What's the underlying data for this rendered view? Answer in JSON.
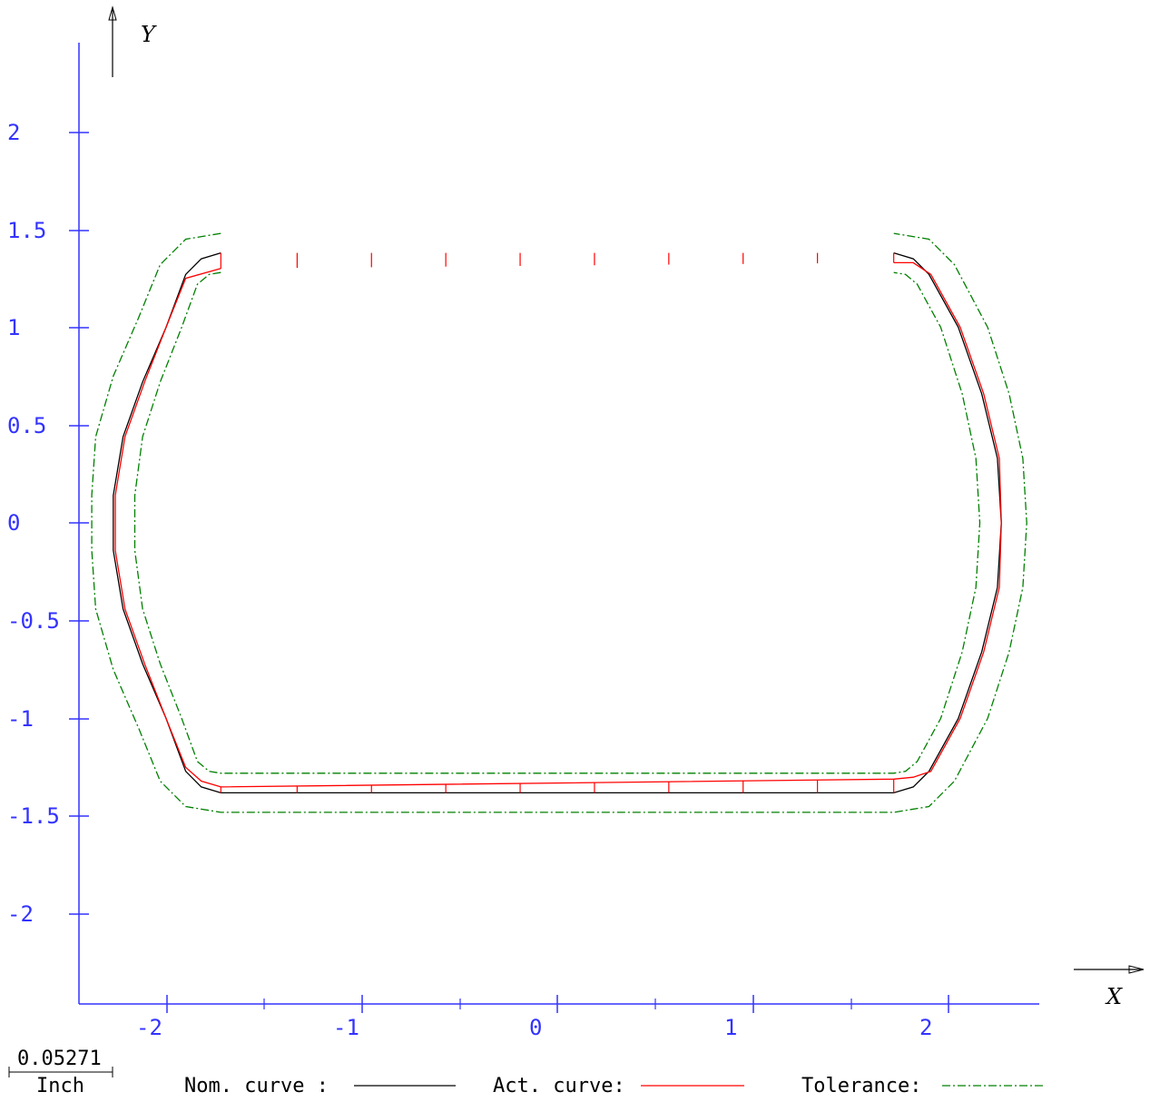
{
  "chart_data": {
    "type": "line",
    "x_axis_label": "X",
    "y_axis_label": "Y",
    "x_ticks": [
      "-2",
      "-1",
      "0",
      "1",
      "2"
    ],
    "y_ticks": [
      "2",
      "1.5",
      "1",
      "0.5",
      "0",
      "-0.5",
      "-1",
      "-1.5",
      "-2"
    ],
    "xlim": [
      -2.45,
      2.45
    ],
    "ylim": [
      -2.45,
      2.45
    ],
    "scale_bar": {
      "value": "0.05271",
      "unit": "Inch"
    },
    "legend": {
      "nominal": "Nom. curve :",
      "actual": "Act. curve:",
      "tolerance": "Tolerance:"
    },
    "colors": {
      "axis": "#3333ff",
      "nominal": "#000000",
      "actual": "#ff0000",
      "tolerance": "#008000"
    },
    "series": [
      {
        "name": "Nom. curve",
        "points": [
          [
            -1.72,
            1.38
          ],
          [
            -1.82,
            1.35
          ],
          [
            -1.9,
            1.27
          ],
          [
            -2.0,
            1.0
          ],
          [
            -2.12,
            0.72
          ],
          [
            -2.22,
            0.44
          ],
          [
            -2.27,
            0.14
          ],
          [
            -2.27,
            -0.14
          ],
          [
            -2.22,
            -0.44
          ],
          [
            -2.12,
            -0.72
          ],
          [
            -2.0,
            -1.0
          ],
          [
            -1.9,
            -1.27
          ],
          [
            -1.82,
            -1.35
          ],
          [
            -1.72,
            -1.38
          ],
          [
            1.72,
            -1.38
          ],
          [
            1.82,
            -1.35
          ],
          [
            1.9,
            -1.27
          ],
          [
            2.05,
            -1.0
          ],
          [
            2.17,
            -0.66
          ],
          [
            2.25,
            -0.33
          ],
          [
            2.27,
            0.0
          ],
          [
            2.25,
            0.33
          ],
          [
            2.17,
            0.66
          ],
          [
            2.05,
            1.0
          ],
          [
            1.9,
            1.27
          ],
          [
            1.82,
            1.35
          ],
          [
            1.72,
            1.38
          ]
        ]
      },
      {
        "name": "Act. curve",
        "points": [
          [
            -1.72,
            1.3
          ],
          [
            -1.9,
            1.25
          ],
          [
            -2.0,
            1.0
          ],
          [
            -2.11,
            0.72
          ],
          [
            -2.21,
            0.44
          ],
          [
            -2.26,
            0.14
          ],
          [
            -2.26,
            -0.14
          ],
          [
            -2.21,
            -0.44
          ],
          [
            -2.11,
            -0.72
          ],
          [
            -2.0,
            -1.0
          ],
          [
            -1.9,
            -1.25
          ],
          [
            -1.82,
            -1.32
          ],
          [
            -1.72,
            -1.35
          ],
          [
            1.72,
            -1.31
          ],
          [
            1.82,
            -1.3
          ],
          [
            1.91,
            -1.27
          ],
          [
            2.06,
            -1.0
          ],
          [
            2.18,
            -0.66
          ],
          [
            2.26,
            -0.33
          ],
          [
            2.27,
            0.0
          ],
          [
            2.26,
            0.33
          ],
          [
            2.18,
            0.66
          ],
          [
            2.06,
            1.0
          ],
          [
            1.91,
            1.27
          ],
          [
            1.82,
            1.33
          ],
          [
            1.72,
            1.33
          ]
        ]
      },
      {
        "name": "Tolerance outer",
        "points": [
          [
            -1.72,
            1.48
          ],
          [
            -1.9,
            1.45
          ],
          [
            -2.03,
            1.32
          ],
          [
            -2.14,
            1.05
          ],
          [
            -2.27,
            0.75
          ],
          [
            -2.36,
            0.44
          ],
          [
            -2.38,
            0.14
          ],
          [
            -2.38,
            -0.14
          ],
          [
            -2.36,
            -0.44
          ],
          [
            -2.27,
            -0.75
          ],
          [
            -2.14,
            -1.05
          ],
          [
            -2.03,
            -1.32
          ],
          [
            -1.9,
            -1.45
          ],
          [
            -1.72,
            -1.48
          ],
          [
            1.72,
            -1.48
          ],
          [
            1.9,
            -1.45
          ],
          [
            2.03,
            -1.32
          ],
          [
            2.2,
            -1.0
          ],
          [
            2.31,
            -0.66
          ],
          [
            2.38,
            -0.33
          ],
          [
            2.4,
            0.0
          ],
          [
            2.38,
            0.33
          ],
          [
            2.31,
            0.66
          ],
          [
            2.2,
            1.0
          ],
          [
            2.03,
            1.32
          ],
          [
            1.9,
            1.45
          ],
          [
            1.72,
            1.48
          ]
        ]
      },
      {
        "name": "Tolerance inner",
        "points": [
          [
            -1.72,
            1.28
          ],
          [
            -1.78,
            1.27
          ],
          [
            -1.84,
            1.22
          ],
          [
            -1.92,
            1.0
          ],
          [
            -2.03,
            0.72
          ],
          [
            -2.12,
            0.44
          ],
          [
            -2.16,
            0.14
          ],
          [
            -2.16,
            -0.14
          ],
          [
            -2.12,
            -0.44
          ],
          [
            -2.03,
            -0.72
          ],
          [
            -1.92,
            -1.0
          ],
          [
            -1.84,
            -1.22
          ],
          [
            -1.78,
            -1.27
          ],
          [
            -1.72,
            -1.28
          ],
          [
            1.72,
            -1.28
          ],
          [
            1.78,
            -1.27
          ],
          [
            1.84,
            -1.22
          ],
          [
            1.96,
            -1.0
          ],
          [
            2.07,
            -0.66
          ],
          [
            2.14,
            -0.33
          ],
          [
            2.16,
            0.0
          ],
          [
            2.14,
            0.33
          ],
          [
            2.07,
            0.66
          ],
          [
            1.96,
            1.0
          ],
          [
            1.84,
            1.22
          ],
          [
            1.78,
            1.27
          ],
          [
            1.72,
            1.28
          ]
        ]
      }
    ],
    "deviation_stubs_x": [
      -1.72,
      -1.33,
      -0.95,
      -0.57,
      -0.19,
      0.19,
      0.57,
      0.95,
      1.33,
      1.72
    ]
  }
}
